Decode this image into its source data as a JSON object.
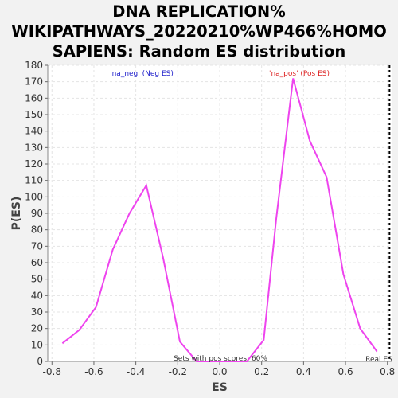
{
  "chart_data": {
    "type": "line",
    "title_lines": [
      "DNA REPLICATION%",
      "WIKIPATHWAYS_20220210%WP466%HOMO",
      "SAPIENS: Random ES distribution"
    ],
    "xlabel": "ES",
    "ylabel": "P(ES)",
    "xlim": [
      -0.82,
      0.82
    ],
    "ylim": [
      0,
      180
    ],
    "x_ticks": [
      "-0.8",
      "-0.6",
      "-0.4",
      "-0.2",
      "0.0",
      "0.2",
      "0.4",
      "0.6",
      "0.8"
    ],
    "x_tick_values": [
      -0.8,
      -0.6,
      -0.4,
      -0.2,
      0.0,
      0.2,
      0.4,
      0.6,
      0.8
    ],
    "y_ticks": [
      "0",
      "10",
      "20",
      "30",
      "40",
      "50",
      "60",
      "70",
      "80",
      "90",
      "100",
      "110",
      "120",
      "130",
      "140",
      "150",
      "160",
      "170",
      "180"
    ],
    "y_tick_values": [
      0,
      10,
      20,
      30,
      40,
      50,
      60,
      70,
      80,
      90,
      100,
      110,
      120,
      130,
      140,
      150,
      160,
      170,
      180
    ],
    "grid": true,
    "line_color": "#ee44ee",
    "series": [
      {
        "x": [
          -0.75,
          -0.67,
          -0.59,
          -0.51,
          -0.43,
          -0.35,
          -0.27,
          -0.19,
          -0.11,
          -0.03,
          0.05,
          0.13,
          0.21,
          0.27,
          0.35,
          0.43,
          0.51,
          0.59,
          0.67,
          0.75
        ],
        "y": [
          11,
          19,
          33,
          68,
          90,
          107,
          63,
          12,
          0,
          0,
          0,
          0,
          13,
          87,
          172,
          134,
          112,
          53,
          20,
          6
        ]
      }
    ],
    "annotations": {
      "neg_label": "'na_neg' (Neg ES)",
      "neg_color": "#2222cc",
      "pos_label": "'na_pos' (Pos ES)",
      "pos_color": "#dd2222",
      "pos_scores_text": "Sets with pos scores: 60%",
      "real_es_text": "Real ES",
      "real_es_value": 0.81
    }
  }
}
